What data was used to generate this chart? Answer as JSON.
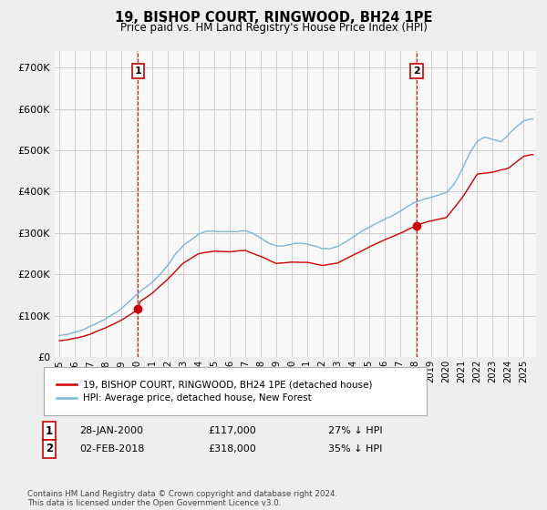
{
  "title": "19, BISHOP COURT, RINGWOOD, BH24 1PE",
  "subtitle": "Price paid vs. HM Land Registry's House Price Index (HPI)",
  "ytick_values": [
    0,
    100000,
    200000,
    300000,
    400000,
    500000,
    600000,
    700000
  ],
  "ylim": [
    0,
    740000
  ],
  "xlim_start": 1994.7,
  "xlim_end": 2025.8,
  "hpi_color": "#7ab8d9",
  "price_color": "#cc0000",
  "vline_color": "#cc0000",
  "grid_color": "#cccccc",
  "bg_color": "#eeeeee",
  "plot_bg_color": "#f8f8f8",
  "legend_label_price": "19, BISHOP COURT, RINGWOOD, BH24 1PE (detached house)",
  "legend_label_hpi": "HPI: Average price, detached house, New Forest",
  "annotation1_label": "1",
  "annotation1_date": "28-JAN-2000",
  "annotation1_price": "£117,000",
  "annotation1_hpi": "27% ↓ HPI",
  "annotation1_year": 2000.08,
  "annotation1_value": 117000,
  "annotation2_label": "2",
  "annotation2_date": "02-FEB-2018",
  "annotation2_price": "£318,000",
  "annotation2_hpi": "35% ↓ HPI",
  "annotation2_year": 2018.09,
  "annotation2_value": 318000,
  "footnote": "Contains HM Land Registry data © Crown copyright and database right 2024.\nThis data is licensed under the Open Government Licence v3.0."
}
